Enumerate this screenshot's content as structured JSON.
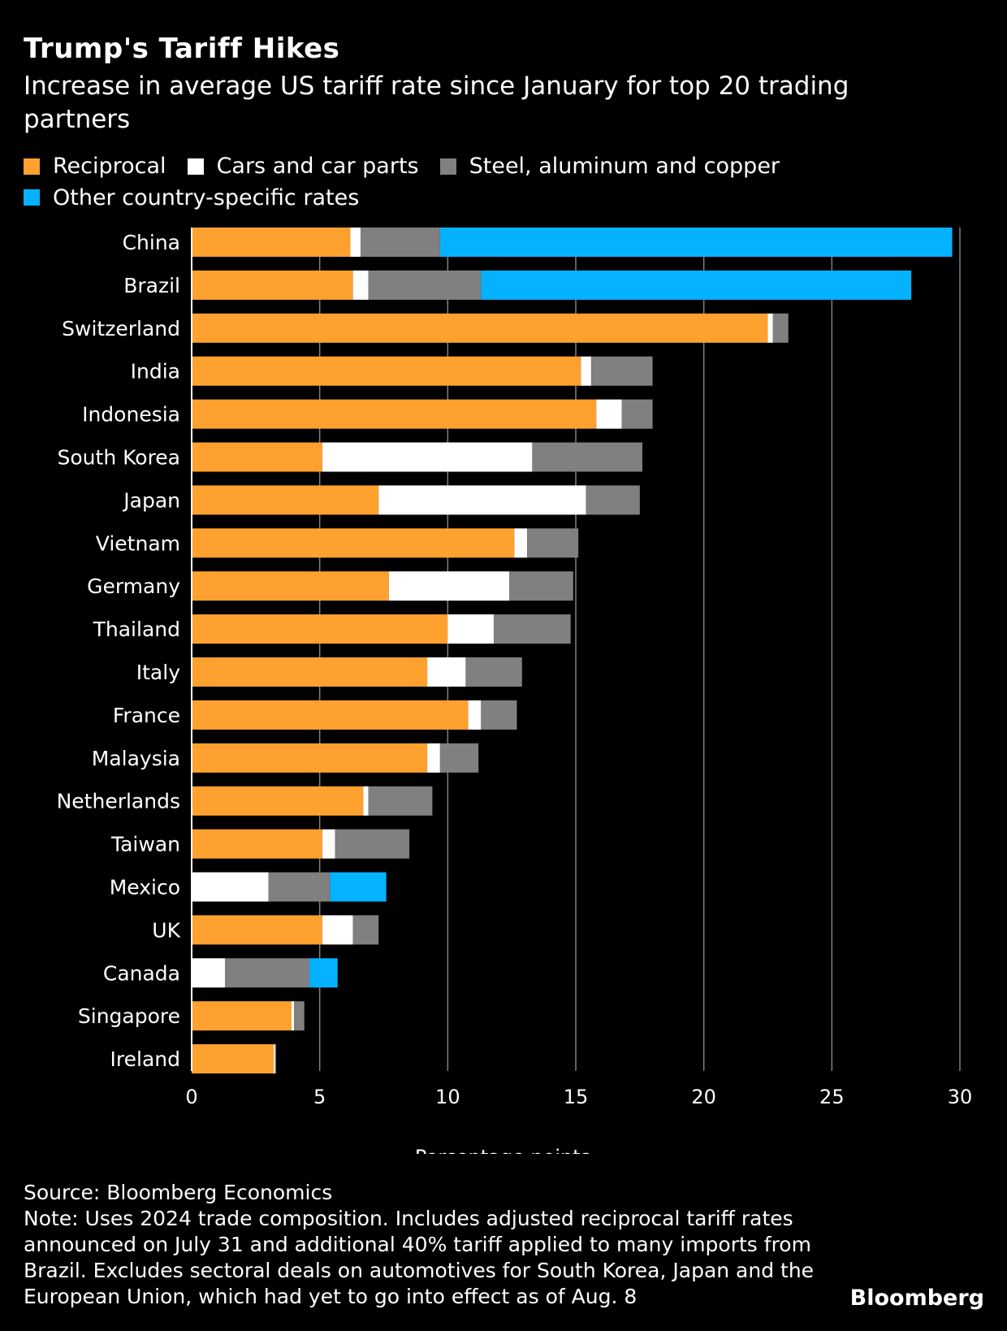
{
  "header": {
    "title": "Trump's Tariff Hikes",
    "subtitle": "Increase in average US tariff rate since January for top 20 trading partners"
  },
  "colors": {
    "reciprocal": "#ffa12e",
    "cars": "#ffffff",
    "steel": "#808080",
    "other": "#05b2ff",
    "gridline": "#808080",
    "background": "#000000"
  },
  "chart_data": {
    "type": "bar",
    "orientation": "horizontal",
    "stacked": true,
    "title": "Trump's Tariff Hikes",
    "subtitle": "Increase in average US tariff rate since January for top 20 trading partners",
    "xlabel": "Percentage points",
    "ylabel": "",
    "xlim": [
      0,
      30
    ],
    "xticks": [
      0,
      5,
      10,
      15,
      20,
      25,
      30
    ],
    "grid": true,
    "legend_position": "top",
    "categories": [
      "China",
      "Brazil",
      "Switzerland",
      "India",
      "Indonesia",
      "South Korea",
      "Japan",
      "Vietnam",
      "Germany",
      "Thailand",
      "Italy",
      "France",
      "Malaysia",
      "Netherlands",
      "Taiwan",
      "Mexico",
      "UK",
      "Canada",
      "Singapore",
      "Ireland"
    ],
    "series": [
      {
        "name": "Reciprocal",
        "color": "#ffa12e",
        "values": [
          6.2,
          6.3,
          22.5,
          15.2,
          15.8,
          5.1,
          7.3,
          12.6,
          7.7,
          10.0,
          9.2,
          10.8,
          9.2,
          6.7,
          5.1,
          0.0,
          5.1,
          0.0,
          3.9,
          3.2
        ]
      },
      {
        "name": "Cars and car parts",
        "color": "#ffffff",
        "values": [
          0.4,
          0.6,
          0.2,
          0.4,
          1.0,
          8.2,
          8.1,
          0.5,
          4.7,
          1.8,
          1.5,
          0.5,
          0.5,
          0.2,
          0.5,
          3.0,
          1.2,
          1.3,
          0.1,
          0.05
        ]
      },
      {
        "name": "Steel, aluminum and copper",
        "color": "#808080",
        "values": [
          3.1,
          4.4,
          0.6,
          2.4,
          1.2,
          4.3,
          2.1,
          2.0,
          2.5,
          3.0,
          2.2,
          1.4,
          1.5,
          2.5,
          2.9,
          2.4,
          1.0,
          3.3,
          0.4,
          0.05
        ]
      },
      {
        "name": "Other country-specific rates",
        "color": "#05b2ff",
        "values": [
          20.0,
          16.8,
          0,
          0,
          0,
          0,
          0,
          0,
          0,
          0,
          0,
          0,
          0,
          0,
          0,
          2.2,
          0,
          1.1,
          0,
          0
        ]
      }
    ]
  },
  "footer": {
    "source": "Source: Bloomberg Economics",
    "note": "Note: Uses 2024 trade composition. Includes adjusted reciprocal tariff rates announced on July 31 and additional 40% tariff applied to many imports from Brazil. Excludes sectoral deals on automotives for South Korea, Japan and the European Union, which had yet to go into effect as of Aug. 8",
    "brand": "Bloomberg"
  }
}
